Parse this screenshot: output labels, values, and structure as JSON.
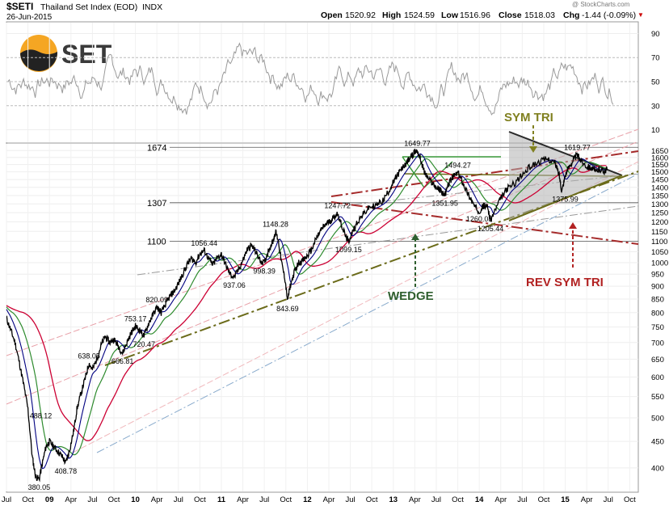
{
  "header": {
    "symbol": "$SETI",
    "name": "Thailand Set Index (EOD)",
    "exchange": "INDX",
    "date": "26-Jun-2015",
    "watermark": "@ StockCharts.com",
    "open_label": "Open",
    "open": "1520.92",
    "high_label": "High",
    "high": "1524.59",
    "low_label": "Low",
    "low": "1516.96",
    "close_label": "Close",
    "close": "1518.03",
    "chg_label": "Chg",
    "chg": "-1.44 (-0.09%)",
    "chg_marker": "▼"
  },
  "logo": {
    "text": "SET"
  },
  "rsi_panel": {
    "axis_ticks": [
      90,
      70,
      50,
      30,
      10
    ],
    "overbought": 70,
    "oversold": 30,
    "series_note": "RSI oscillator line, 2008–2015"
  },
  "chart_data": {
    "type": "line",
    "title": "$SETI Thailand Set Index (EOD) INDX",
    "y_scale": "log",
    "ylim": [
      360,
      1700
    ],
    "y_ticks": [
      1650,
      1600,
      1550,
      1500,
      1450,
      1400,
      1350,
      1300,
      1250,
      1200,
      1150,
      1100,
      1050,
      1000,
      950,
      900,
      850,
      800,
      750,
      700,
      650,
      600,
      550,
      500,
      450,
      400
    ],
    "x_range": [
      2008.5,
      2015.85
    ],
    "x_ticks": [
      {
        "t": 2008.5,
        "label": "Jul"
      },
      {
        "t": 2008.75,
        "label": "Oct"
      },
      {
        "t": 2009.0,
        "label": "09"
      },
      {
        "t": 2009.25,
        "label": "Apr"
      },
      {
        "t": 2009.5,
        "label": "Jul"
      },
      {
        "t": 2009.75,
        "label": "Oct"
      },
      {
        "t": 2010.0,
        "label": "10"
      },
      {
        "t": 2010.25,
        "label": "Apr"
      },
      {
        "t": 2010.5,
        "label": "Jul"
      },
      {
        "t": 2010.75,
        "label": "Oct"
      },
      {
        "t": 2011.0,
        "label": "11"
      },
      {
        "t": 2011.25,
        "label": "Apr"
      },
      {
        "t": 2011.5,
        "label": "Jul"
      },
      {
        "t": 2011.75,
        "label": "Oct"
      },
      {
        "t": 2012.0,
        "label": "12"
      },
      {
        "t": 2012.25,
        "label": "Apr"
      },
      {
        "t": 2012.5,
        "label": "Jul"
      },
      {
        "t": 2012.75,
        "label": "Oct"
      },
      {
        "t": 2013.0,
        "label": "13"
      },
      {
        "t": 2013.25,
        "label": "Apr"
      },
      {
        "t": 2013.5,
        "label": "Jul"
      },
      {
        "t": 2013.75,
        "label": "Oct"
      },
      {
        "t": 2014.0,
        "label": "14"
      },
      {
        "t": 2014.25,
        "label": "Apr"
      },
      {
        "t": 2014.5,
        "label": "Jul"
      },
      {
        "t": 2014.75,
        "label": "Oct"
      },
      {
        "t": 2015.0,
        "label": "15"
      },
      {
        "t": 2015.25,
        "label": "Apr"
      },
      {
        "t": 2015.5,
        "label": "Jul"
      },
      {
        "t": 2015.75,
        "label": "Oct"
      }
    ],
    "price_points": [
      [
        2008.5,
        780
      ],
      [
        2008.55,
        740
      ],
      [
        2008.6,
        700
      ],
      [
        2008.65,
        640
      ],
      [
        2008.7,
        580
      ],
      [
        2008.75,
        520
      ],
      [
        2008.8,
        420
      ],
      [
        2008.84,
        385
      ],
      [
        2008.88,
        380.05
      ],
      [
        2008.92,
        410
      ],
      [
        2008.96,
        440
      ],
      [
        2009.0,
        450
      ],
      [
        2009.05,
        440
      ],
      [
        2009.1,
        430
      ],
      [
        2009.15,
        420
      ],
      [
        2009.19,
        408.78
      ],
      [
        2009.23,
        430
      ],
      [
        2009.28,
        470
      ],
      [
        2009.32,
        520
      ],
      [
        2009.37,
        560
      ],
      [
        2009.42,
        600
      ],
      [
        2009.46,
        638.05
      ],
      [
        2009.5,
        620
      ],
      [
        2009.55,
        650
      ],
      [
        2009.6,
        690
      ],
      [
        2009.65,
        720
      ],
      [
        2009.7,
        700
      ],
      [
        2009.75,
        710
      ],
      [
        2009.8,
        690
      ],
      [
        2009.85,
        666.81
      ],
      [
        2009.9,
        700
      ],
      [
        2009.95,
        730
      ],
      [
        2010.0,
        753.17
      ],
      [
        2010.05,
        740
      ],
      [
        2010.1,
        720.47
      ],
      [
        2010.15,
        760
      ],
      [
        2010.2,
        790
      ],
      [
        2010.25,
        820.09
      ],
      [
        2010.3,
        800
      ],
      [
        2010.35,
        830
      ],
      [
        2010.4,
        860
      ],
      [
        2010.45,
        880
      ],
      [
        2010.5,
        910
      ],
      [
        2010.55,
        950
      ],
      [
        2010.6,
        990
      ],
      [
        2010.65,
        1020
      ],
      [
        2010.7,
        1000
      ],
      [
        2010.75,
        1040
      ],
      [
        2010.8,
        1056.44
      ],
      [
        2010.85,
        1020
      ],
      [
        2010.9,
        990
      ],
      [
        2010.95,
        1020
      ],
      [
        2011.0,
        1040
      ],
      [
        2011.05,
        990
      ],
      [
        2011.1,
        950
      ],
      [
        2011.15,
        937.06
      ],
      [
        2011.2,
        970
      ],
      [
        2011.25,
        1010
      ],
      [
        2011.3,
        1060
      ],
      [
        2011.35,
        1080
      ],
      [
        2011.4,
        1050
      ],
      [
        2011.45,
        1010
      ],
      [
        2011.5,
        998.39
      ],
      [
        2011.55,
        1060
      ],
      [
        2011.6,
        1100
      ],
      [
        2011.63,
        1148.28
      ],
      [
        2011.66,
        1110
      ],
      [
        2011.7,
        1000
      ],
      [
        2011.74,
        930
      ],
      [
        2011.77,
        843.69
      ],
      [
        2011.8,
        900
      ],
      [
        2011.85,
        960
      ],
      [
        2011.9,
        1000
      ],
      [
        2011.95,
        1010
      ],
      [
        2012.0,
        1030
      ],
      [
        2012.05,
        1060
      ],
      [
        2012.1,
        1110
      ],
      [
        2012.15,
        1150
      ],
      [
        2012.2,
        1180
      ],
      [
        2012.25,
        1200
      ],
      [
        2012.3,
        1220
      ],
      [
        2012.35,
        1247.72
      ],
      [
        2012.4,
        1180
      ],
      [
        2012.45,
        1120
      ],
      [
        2012.48,
        1099.15
      ],
      [
        2012.52,
        1140
      ],
      [
        2012.58,
        1200
      ],
      [
        2012.65,
        1240
      ],
      [
        2012.72,
        1280
      ],
      [
        2012.8,
        1290
      ],
      [
        2012.88,
        1320
      ],
      [
        2012.95,
        1380
      ],
      [
        2013.0,
        1430
      ],
      [
        2013.05,
        1480
      ],
      [
        2013.1,
        1520
      ],
      [
        2013.15,
        1560
      ],
      [
        2013.2,
        1600
      ],
      [
        2013.25,
        1640
      ],
      [
        2013.28,
        1649.77
      ],
      [
        2013.32,
        1580
      ],
      [
        2013.36,
        1500
      ],
      [
        2013.4,
        1460
      ],
      [
        2013.45,
        1430
      ],
      [
        2013.5,
        1400
      ],
      [
        2013.55,
        1380
      ],
      [
        2013.6,
        1351.95
      ],
      [
        2013.65,
        1430
      ],
      [
        2013.7,
        1470
      ],
      [
        2013.75,
        1494.27
      ],
      [
        2013.8,
        1440
      ],
      [
        2013.85,
        1380
      ],
      [
        2013.9,
        1330
      ],
      [
        2013.95,
        1280
      ],
      [
        2014.0,
        1260.08
      ],
      [
        2014.05,
        1290
      ],
      [
        2014.1,
        1280
      ],
      [
        2014.13,
        1205.44
      ],
      [
        2014.18,
        1260
      ],
      [
        2014.25,
        1330
      ],
      [
        2014.32,
        1390
      ],
      [
        2014.4,
        1420
      ],
      [
        2014.5,
        1480
      ],
      [
        2014.6,
        1540
      ],
      [
        2014.7,
        1570
      ],
      [
        2014.8,
        1590
      ],
      [
        2014.88,
        1560
      ],
      [
        2014.93,
        1480
      ],
      [
        2014.96,
        1376
      ],
      [
        2015.0,
        1480
      ],
      [
        2015.05,
        1540
      ],
      [
        2015.1,
        1590
      ],
      [
        2015.14,
        1619.77
      ],
      [
        2015.18,
        1580
      ],
      [
        2015.25,
        1540
      ],
      [
        2015.3,
        1530
      ],
      [
        2015.35,
        1500
      ],
      [
        2015.4,
        1520
      ],
      [
        2015.45,
        1505
      ],
      [
        2015.49,
        1518.03
      ]
    ],
    "moving_average_colors": [
      "#000080",
      "#2e8b2e",
      "#cc0033"
    ],
    "horizontal_levels": [
      {
        "value": 1674,
        "label": "1674"
      },
      {
        "value": 1307,
        "label": "1307"
      },
      {
        "value": 1100,
        "label": "1100"
      }
    ],
    "price_labels": [
      {
        "label": "380.05",
        "t": 2008.88,
        "value": 380.05
      },
      {
        "label": "408.78",
        "t": 2009.19,
        "value": 408.78
      },
      {
        "label": "488.12",
        "t": 2008.9,
        "value": 488.12
      },
      {
        "label": "638.05",
        "t": 2009.46,
        "value": 638.05
      },
      {
        "label": "666.81",
        "t": 2009.85,
        "value": 666.81
      },
      {
        "label": "753.17",
        "t": 2010.0,
        "value": 753.17
      },
      {
        "label": "720.47",
        "t": 2010.1,
        "value": 720.47
      },
      {
        "label": "820.09",
        "t": 2010.25,
        "value": 820.09
      },
      {
        "label": "1056.44",
        "t": 2010.8,
        "value": 1056.44
      },
      {
        "label": "937.06",
        "t": 2011.15,
        "value": 937.06
      },
      {
        "label": "998.39",
        "t": 2011.5,
        "value": 998.39
      },
      {
        "label": "1148.28",
        "t": 2011.63,
        "value": 1148.28
      },
      {
        "label": "843.69",
        "t": 2011.77,
        "value": 843.69
      },
      {
        "label": "1247.72",
        "t": 2012.35,
        "value": 1247.72
      },
      {
        "label": "1099.15",
        "t": 2012.48,
        "value": 1099.15
      },
      {
        "label": "1649.77",
        "t": 2013.28,
        "value": 1649.77
      },
      {
        "label": "1351.95",
        "t": 2013.6,
        "value": 1351.95
      },
      {
        "label": "1494.27",
        "t": 2013.75,
        "value": 1494.27
      },
      {
        "label": "1260.08",
        "t": 2014.0,
        "value": 1260.08
      },
      {
        "label": "1205.44",
        "t": 2014.13,
        "value": 1205.44
      },
      {
        "label": "1619.77",
        "t": 2015.14,
        "value": 1619.77
      },
      {
        "label": "1375.99",
        "t": 2015.0,
        "value": 1375.99
      }
    ],
    "annotations": [
      {
        "text": "SYM TRI",
        "color": "#808020"
      },
      {
        "text": "WEDGE",
        "color": "#2e5e2e"
      },
      {
        "text": "REV SYM TRI",
        "color": "#b22222"
      }
    ]
  }
}
